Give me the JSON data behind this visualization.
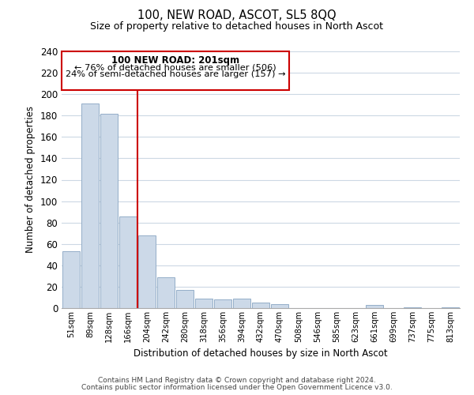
{
  "title1": "100, NEW ROAD, ASCOT, SL5 8QQ",
  "title2": "Size of property relative to detached houses in North Ascot",
  "xlabel": "Distribution of detached houses by size in North Ascot",
  "ylabel": "Number of detached properties",
  "footer1": "Contains HM Land Registry data © Crown copyright and database right 2024.",
  "footer2": "Contains public sector information licensed under the Open Government Licence v3.0.",
  "bin_labels": [
    "51sqm",
    "89sqm",
    "128sqm",
    "166sqm",
    "204sqm",
    "242sqm",
    "280sqm",
    "318sqm",
    "356sqm",
    "394sqm",
    "432sqm",
    "470sqm",
    "508sqm",
    "546sqm",
    "585sqm",
    "623sqm",
    "661sqm",
    "699sqm",
    "737sqm",
    "775sqm",
    "813sqm"
  ],
  "bar_values": [
    53,
    191,
    182,
    86,
    68,
    29,
    17,
    9,
    8,
    9,
    5,
    4,
    0,
    0,
    0,
    0,
    3,
    0,
    1,
    0,
    1
  ],
  "bar_color": "#ccd9e8",
  "bar_edge_color": "#94aec8",
  "vline_color": "#cc0000",
  "annotation_title": "100 NEW ROAD: 201sqm",
  "annotation_line1": "← 76% of detached houses are smaller (506)",
  "annotation_line2": "24% of semi-detached houses are larger (157) →",
  "annotation_box_color": "#ffffff",
  "annotation_box_edge": "#cc0000",
  "ylim": [
    0,
    240
  ],
  "yticks": [
    0,
    20,
    40,
    60,
    80,
    100,
    120,
    140,
    160,
    180,
    200,
    220,
    240
  ],
  "bg_color": "#ffffff",
  "grid_color": "#ccd8e4"
}
